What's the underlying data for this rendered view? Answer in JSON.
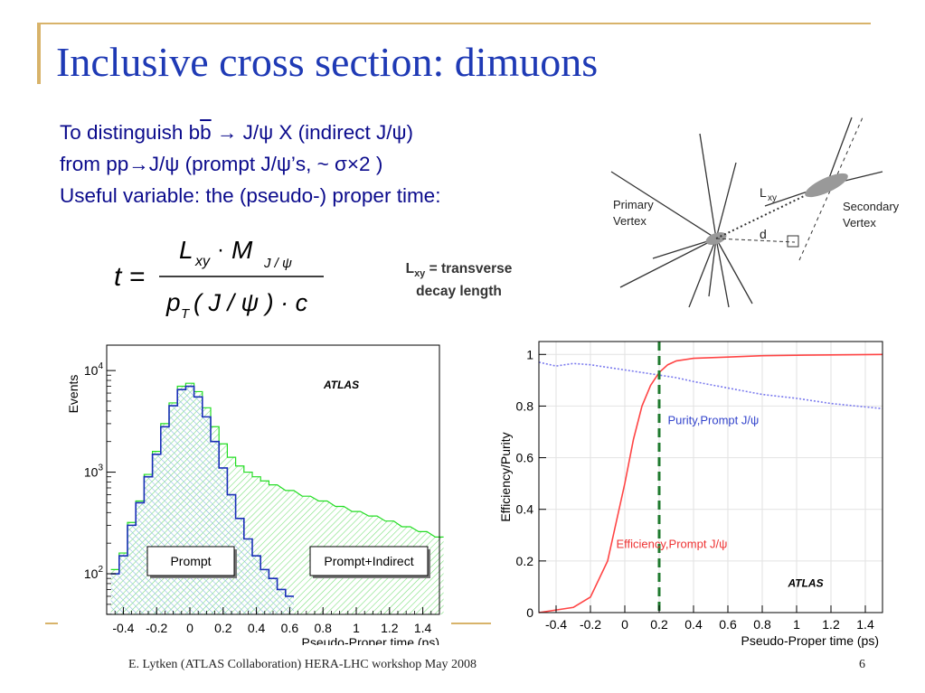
{
  "title": "Inclusive cross section: dimuons",
  "body": {
    "line1_pre": "To distinguish b",
    "line1_bbar": "b",
    "line1_post": " → J/ψ X (indirect J/ψ)",
    "line2": "from pp→J/ψ (prompt J/ψ’s,  ~ σ×2 )",
    "line3": "Useful variable: the (pseudo-) proper time:"
  },
  "formula": {
    "lhs": "t =",
    "num_L": "L",
    "num_L_sub": "xy",
    "num_dot": "·",
    "num_M": "M",
    "num_M_sub": "J / ψ",
    "den_p": "p",
    "den_p_sub": "T",
    "den_rest": "( J / ψ ) · c"
  },
  "lxy_note": {
    "symbol": "L",
    "sub": "xy",
    "text1": " = transverse",
    "text2": "decay length"
  },
  "diagram": {
    "primary_label_1": "Primary",
    "primary_label_2": "Vertex",
    "secondary_label_1": "Secondary",
    "secondary_label_2": "Vertex",
    "lxy_label": "L",
    "lxy_sub": "xy",
    "d_label": "d"
  },
  "chart_data": [
    {
      "type": "line",
      "title": "ATLAS",
      "xlabel": "Pseudo-Proper time (ps)",
      "ylabel": "Events",
      "x_ticks": [
        "-0.4",
        "-0.2",
        "0",
        "0.2",
        "0.4",
        "0.6",
        "0.8",
        "1",
        "1.2",
        "1.4"
      ],
      "y_ticks": [
        "10",
        "10",
        "10"
      ],
      "y_tick_exps": [
        "4",
        "3",
        "2"
      ],
      "xlim": [
        -0.5,
        1.5
      ],
      "ylim_log10": [
        1.6,
        4.25
      ],
      "scale_y": "log",
      "legend": [
        "Prompt",
        "Prompt+Indirect"
      ],
      "series": [
        {
          "name": "Prompt",
          "color": "#1a2fb8",
          "x": [
            -0.45,
            -0.4,
            -0.35,
            -0.3,
            -0.25,
            -0.2,
            -0.15,
            -0.1,
            -0.05,
            0,
            0.05,
            0.1,
            0.15,
            0.2,
            0.25,
            0.3,
            0.35,
            0.4,
            0.45,
            0.5,
            0.55,
            0.6
          ],
          "y": [
            100,
            150,
            300,
            500,
            900,
            1500,
            2800,
            4500,
            6500,
            7000,
            5500,
            3500,
            2000,
            1100,
            600,
            350,
            220,
            150,
            110,
            90,
            70,
            60
          ]
        },
        {
          "name": "Prompt+Indirect",
          "color": "#22dd22",
          "x": [
            -0.45,
            -0.4,
            -0.35,
            -0.3,
            -0.25,
            -0.2,
            -0.15,
            -0.1,
            -0.05,
            0,
            0.05,
            0.1,
            0.15,
            0.2,
            0.25,
            0.3,
            0.35,
            0.4,
            0.45,
            0.5,
            0.6,
            0.7,
            0.8,
            0.9,
            1.0,
            1.1,
            1.2,
            1.3,
            1.4,
            1.5
          ],
          "y": [
            110,
            160,
            320,
            520,
            950,
            1600,
            3000,
            4800,
            7000,
            7500,
            6200,
            4300,
            2800,
            1900,
            1400,
            1150,
            1000,
            900,
            820,
            750,
            660,
            580,
            520,
            460,
            410,
            370,
            330,
            290,
            260,
            230
          ]
        }
      ]
    },
    {
      "type": "line",
      "title": "ATLAS",
      "xlabel": "Pseudo-Proper time (ps)",
      "ylabel": "Efficiency/Purity",
      "x_ticks": [
        "-0.4",
        "-0.2",
        "0",
        "0.2",
        "0.4",
        "0.6",
        "0.8",
        "1",
        "1.2",
        "1.4"
      ],
      "y_ticks": [
        "0",
        "0.2",
        "0.4",
        "0.6",
        "0.8",
        "1"
      ],
      "xlim": [
        -0.5,
        1.5
      ],
      "ylim": [
        0,
        1.05
      ],
      "cut_line_x": 0.2,
      "series": [
        {
          "name": "Efficiency,Prompt J/ψ",
          "color": "#ff4444",
          "x": [
            -0.5,
            -0.3,
            -0.2,
            -0.1,
            -0.05,
            0,
            0.05,
            0.1,
            0.15,
            0.2,
            0.25,
            0.3,
            0.4,
            0.6,
            0.8,
            1.0,
            1.2,
            1.5
          ],
          "y": [
            0.0,
            0.02,
            0.06,
            0.2,
            0.35,
            0.5,
            0.67,
            0.8,
            0.88,
            0.93,
            0.96,
            0.975,
            0.985,
            0.99,
            0.995,
            0.997,
            0.998,
            1.0
          ]
        },
        {
          "name": "Purity,Prompt J/ψ",
          "color": "#7a7aee",
          "x": [
            -0.5,
            -0.4,
            -0.3,
            -0.2,
            -0.1,
            0,
            0.1,
            0.2,
            0.3,
            0.4,
            0.6,
            0.8,
            1.0,
            1.2,
            1.5
          ],
          "y": [
            0.97,
            0.955,
            0.965,
            0.96,
            0.95,
            0.94,
            0.93,
            0.92,
            0.91,
            0.895,
            0.87,
            0.845,
            0.83,
            0.81,
            0.79
          ]
        }
      ]
    }
  ],
  "footer": "E. Lytken  (ATLAS Collaboration) HERA-LHC workshop May 2008",
  "page_number": "6",
  "colors": {
    "title": "#1f3ab5",
    "body_text": "#0b0b8c",
    "accent_line": "#d8b36a"
  }
}
